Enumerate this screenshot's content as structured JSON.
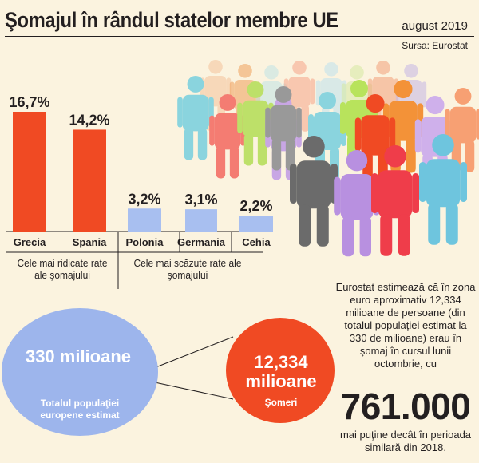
{
  "header": {
    "title": "Şomajul în rândul statelor membre UE",
    "date": "august 2019",
    "source": "Sursa: Eurostat"
  },
  "chart_data": {
    "type": "bar",
    "categories": [
      "Grecia",
      "Spania",
      "Polonia",
      "Germania",
      "Cehia"
    ],
    "values": [
      16.7,
      14.2,
      3.2,
      3.1,
      2.2
    ],
    "value_labels": [
      "16,7%",
      "14,2%",
      "3,2%",
      "3,1%",
      "2,2%"
    ],
    "groups": [
      {
        "label": "Cele mai ridicate rate ale şomajului",
        "members": [
          "Grecia",
          "Spania"
        ],
        "color": "#f04a23"
      },
      {
        "label": "Cele mai scăzute rate ale şomajului",
        "members": [
          "Polonia",
          "Germania",
          "Cehia"
        ],
        "color": "#a8bff0"
      }
    ],
    "title": "",
    "xlabel": "",
    "ylabel": "",
    "ylim": [
      0,
      17
    ]
  },
  "bubbles": {
    "population": {
      "value": "330 milioane",
      "caption": "Totalul populaţiei europene estimat",
      "color": "#9db5ec"
    },
    "unemployed": {
      "value_line1": "12,334",
      "value_line2": "milioane",
      "caption": "Şomeri",
      "color": "#f04a23"
    }
  },
  "estimate": {
    "text": "Eurostat estimează că în zona euro aproximativ 12,334 milioane de persoane (din totalul populaţiei estimat la 330 de milioane) erau în şomaj în cursul lunii octombrie, cu",
    "highlight_number": "761.000",
    "tail": "mai puţine decât în perioada similară din 2018."
  },
  "colors": {
    "background": "#fbf3df",
    "high_rate": "#f04a23",
    "low_rate": "#a8bff0",
    "text": "#231f20"
  }
}
